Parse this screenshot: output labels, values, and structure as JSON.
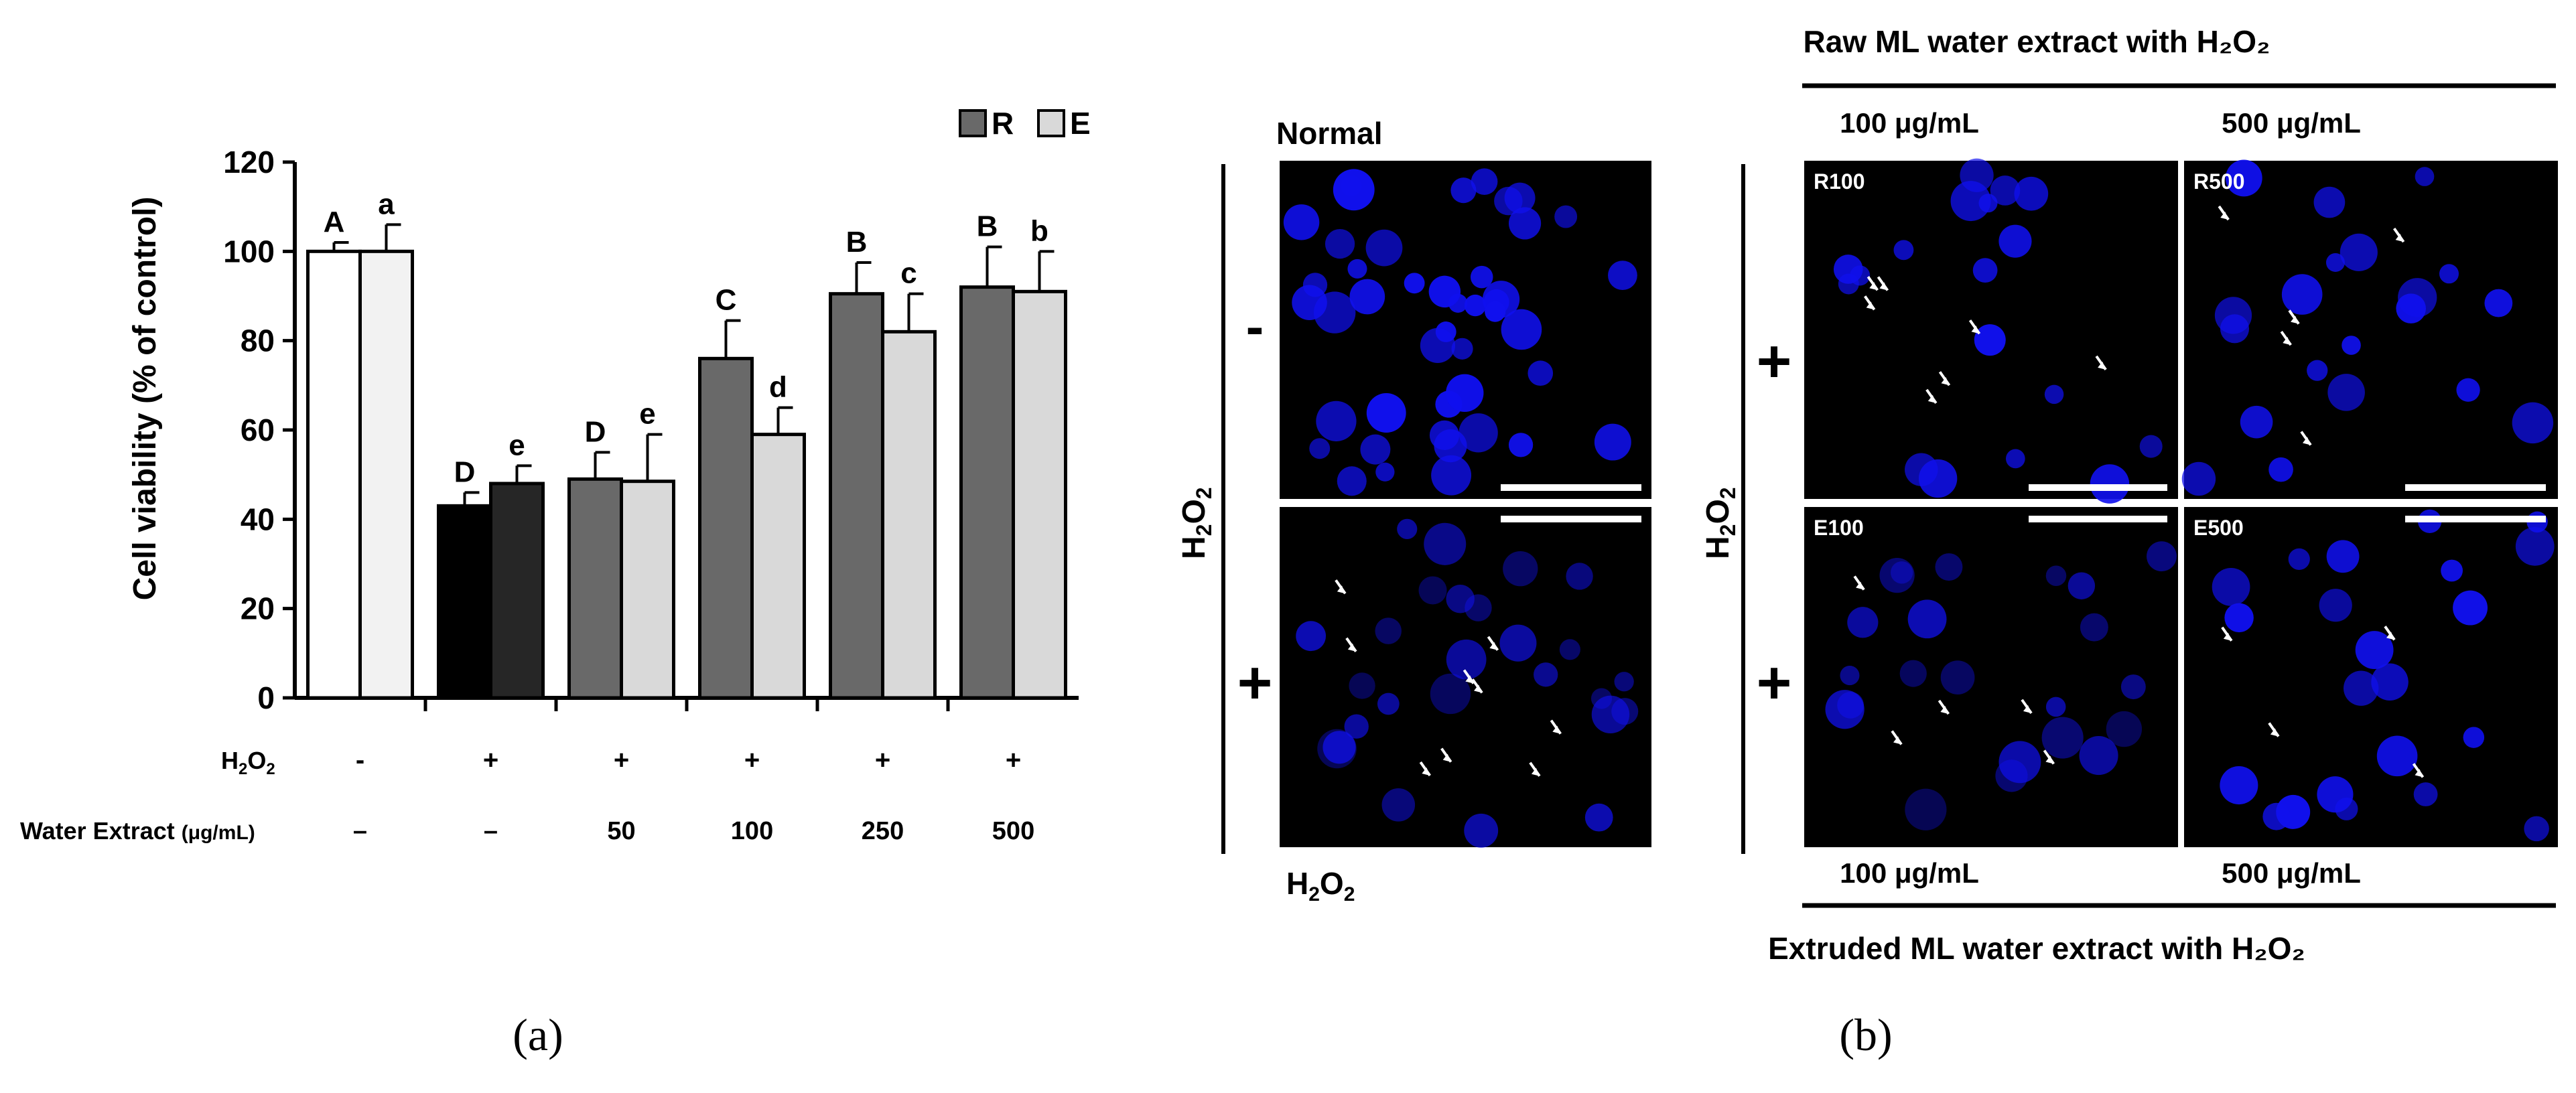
{
  "chart_data": {
    "type": "bar",
    "ylabel": "Cell viability (% of control)",
    "ylim": [
      0,
      120
    ],
    "yticks": [
      0,
      20,
      40,
      60,
      80,
      100,
      120
    ],
    "legend": {
      "placement": "top-right",
      "entries": [
        "R",
        "E"
      ]
    },
    "row_labels": {
      "h2o2": "H2O2",
      "extract": "Water Extract",
      "extract_unit": "(μg/mL)"
    },
    "groups": [
      {
        "h2o2": "-",
        "extract": "–",
        "bars": [
          {
            "value": 100,
            "error": 2,
            "letter": "A",
            "color": "#ffffff"
          },
          {
            "value": 100,
            "error": 6,
            "letter": "a",
            "color": "#f2f2f2"
          }
        ]
      },
      {
        "h2o2": "+",
        "extract": "–",
        "bars": [
          {
            "value": 43,
            "error": 3,
            "letter": "D",
            "color": "#000000"
          },
          {
            "value": 48,
            "error": 4,
            "letter": "e",
            "color": "#262626"
          }
        ]
      },
      {
        "h2o2": "+",
        "extract": "50",
        "bars": [
          {
            "value": 49,
            "error": 6,
            "letter": "D",
            "color": "#696969"
          },
          {
            "value": 48.5,
            "error": 10.5,
            "letter": "e",
            "color": "#d9d9d9"
          }
        ]
      },
      {
        "h2o2": "+",
        "extract": "100",
        "bars": [
          {
            "value": 76,
            "error": 8.5,
            "letter": "C",
            "color": "#696969"
          },
          {
            "value": 59,
            "error": 6,
            "letter": "d",
            "color": "#d9d9d9"
          }
        ]
      },
      {
        "h2o2": "+",
        "extract": "250",
        "bars": [
          {
            "value": 90.5,
            "error": 7,
            "letter": "B",
            "color": "#696969"
          },
          {
            "value": 82,
            "error": 8.5,
            "letter": "c",
            "color": "#d9d9d9"
          }
        ]
      },
      {
        "h2o2": "+",
        "extract": "500",
        "bars": [
          {
            "value": 92,
            "error": 9,
            "letter": "B",
            "color": "#696969"
          },
          {
            "value": 91,
            "error": 9,
            "letter": "b",
            "color": "#d9d9d9"
          }
        ]
      }
    ]
  },
  "panel_a_label": "(a)",
  "panel_b_label": "(b)",
  "panel_b": {
    "raw_header": "Raw ML water extract with H₂O₂",
    "extruded_footer": "Extruded ML water extract with H₂O₂",
    "conc_100_top": "100 μg/mL",
    "conc_500_top": "500 μg/mL",
    "conc_100_bottom": "100 μg/mL",
    "conc_500_bottom": "500 μg/mL",
    "normal_label": "Normal",
    "h2o2_bottom_label": "H₂O₂",
    "h2o2_side_left": "H₂O₂",
    "h2o2_side_right": "H₂O₂",
    "minus_sign": "-",
    "plus_sign_left": "+",
    "plus_sign_right_top": "+",
    "plus_sign_right_bottom": "+",
    "tiles": {
      "r100": "R100",
      "r500": "R500",
      "e100": "E100",
      "e500": "E500"
    },
    "cell_color": "#1010ee",
    "background_color": "#000000"
  }
}
